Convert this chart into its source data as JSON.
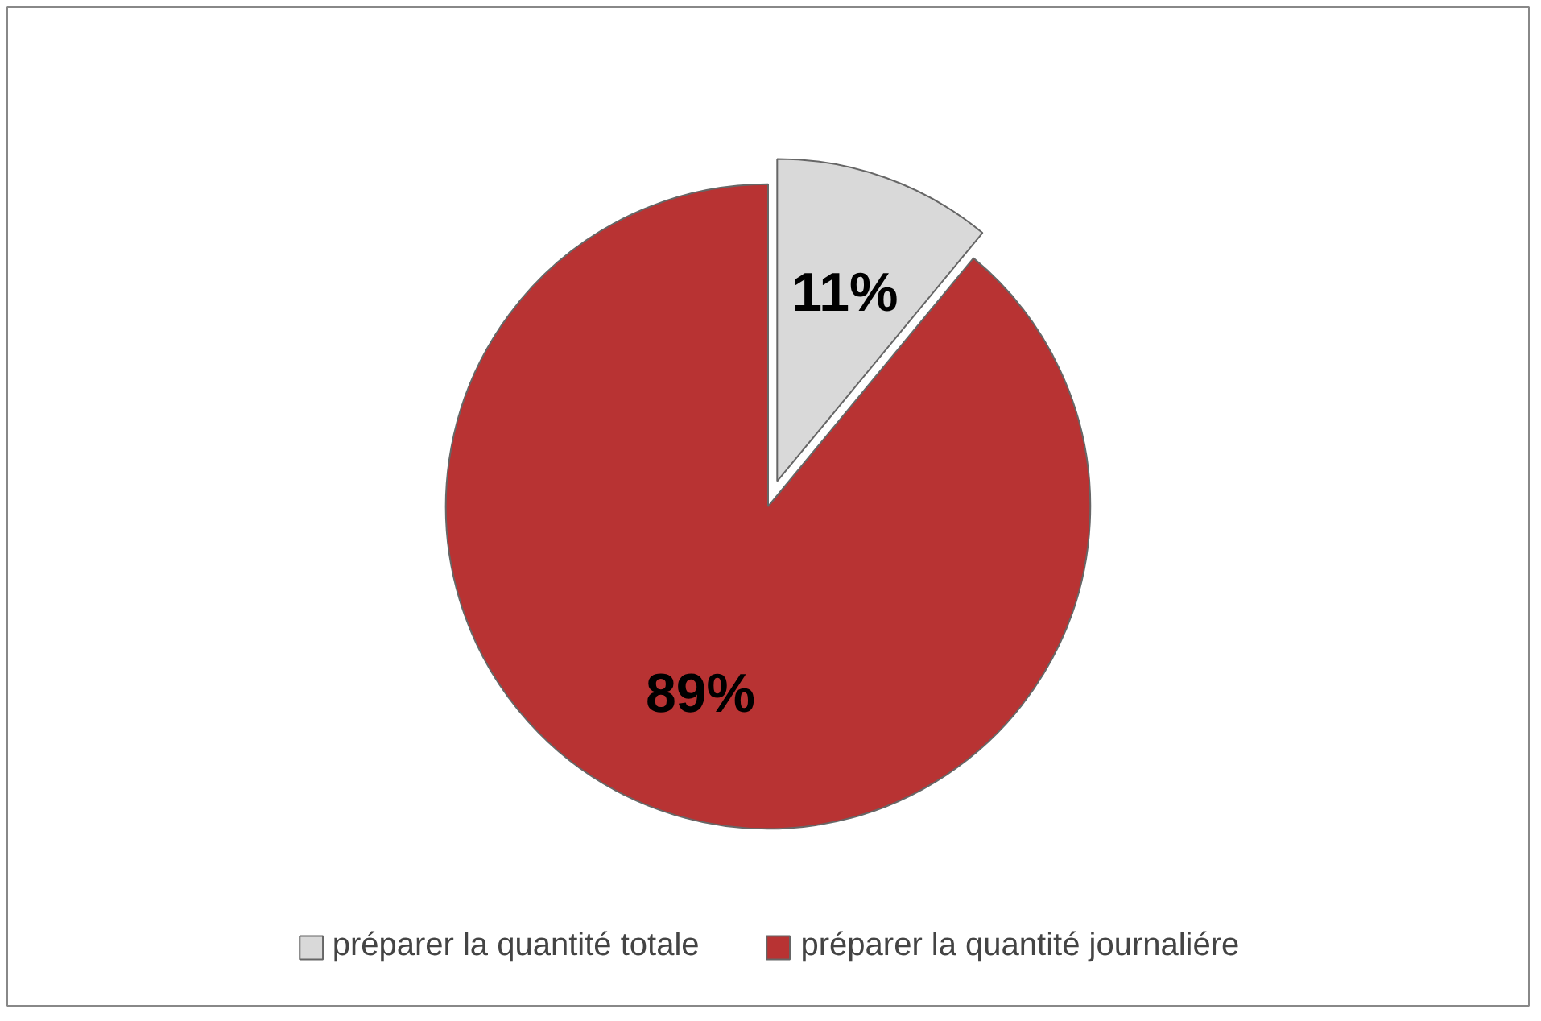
{
  "chart_data": {
    "type": "pie",
    "categories": [
      "préparer la quantité totale",
      "préparer la quantité journaliére"
    ],
    "values": [
      11,
      89
    ],
    "colors": [
      "#d9d9d9",
      "#b83333"
    ],
    "value_labels": [
      "11%",
      "89%"
    ],
    "legend": "bottom"
  }
}
